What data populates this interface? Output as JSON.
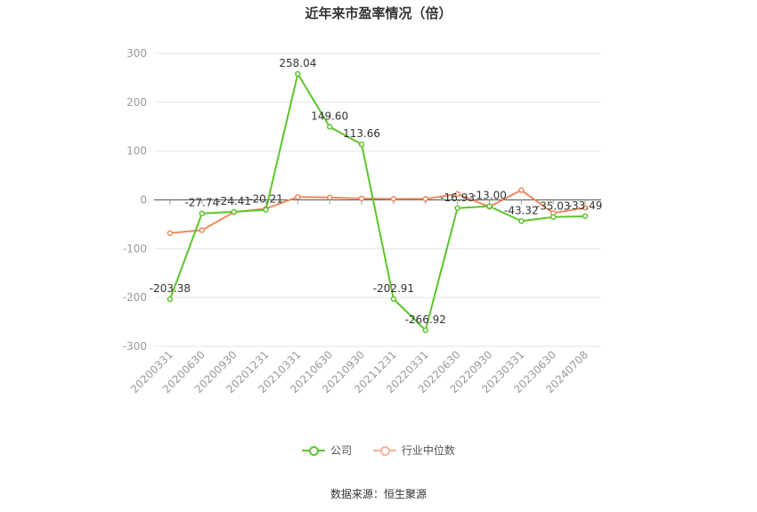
{
  "chart_data": {
    "type": "line",
    "title": "近年来市盈率情况（倍）",
    "categories": [
      "20200331",
      "20200630",
      "20200930",
      "20201231",
      "20210331",
      "20210630",
      "20210930",
      "20211231",
      "20220331",
      "20220630",
      "20220930",
      "20230331",
      "20230630",
      "20240708"
    ],
    "ylim": [
      -300,
      300
    ],
    "yticks": [
      300,
      200,
      100,
      0,
      -100,
      -200,
      -300
    ],
    "grid": true,
    "legend_position": "bottom",
    "series": [
      {
        "name": "公司",
        "color": "#5cc52c",
        "values": [
          -203.38,
          -27.74,
          -24.41,
          -20.21,
          258.04,
          149.6,
          113.66,
          -202.91,
          -266.92,
          -16.93,
          -13.0,
          -43.32,
          -35.03,
          -33.49
        ],
        "labels": [
          "-203.38",
          "-27.74",
          "-24.41",
          "-20.21",
          "258.04",
          "149.60",
          "113.66",
          "-202.91",
          "-266.92",
          "-16.93",
          "-13.00",
          "-43.32",
          "-35.03",
          "-33.49"
        ]
      },
      {
        "name": "行业中位数",
        "color": "#f08a5d",
        "values": [
          -68,
          -62,
          -25,
          -18,
          6,
          5,
          3,
          2,
          2,
          12,
          -14,
          20,
          -27,
          -16
        ]
      }
    ]
  },
  "source": "数据来源：恒生聚源"
}
